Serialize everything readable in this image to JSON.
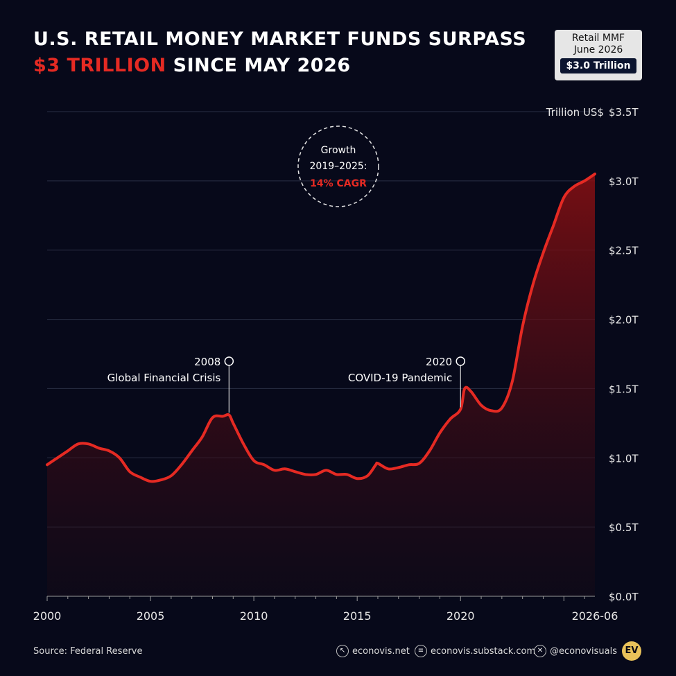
{
  "title": {
    "line1": "U.S. RETAIL MONEY MARKET FUNDS SURPASS",
    "highlight": "$3 TRILLION",
    "line2_rest": " SINCE MAY 2026"
  },
  "badge": {
    "line1": "Retail MMF",
    "line2": "June 2026",
    "value": "$3.0 Trillion"
  },
  "chart_data": {
    "type": "area",
    "unit_label": "Trillion US$",
    "x_ticks": [
      "2000",
      "2005",
      "2010",
      "2015",
      "2020",
      "2026-06"
    ],
    "x_tick_years": [
      2000,
      2005,
      2010,
      2015,
      2020,
      2026.5
    ],
    "y_ticks": [
      "$0.0T",
      "$0.5T",
      "$1.0T",
      "$1.5T",
      "$2.0T",
      "$2.5T",
      "$3.0T",
      "$3.5T"
    ],
    "xlim": [
      2000,
      2026.5
    ],
    "ylim": [
      0,
      3.5
    ],
    "grid": true,
    "series": [
      {
        "x": [
          2000,
          2000.5,
          2001,
          2001.5,
          2002,
          2002.5,
          2003,
          2003.5,
          2004,
          2004.5,
          2005,
          2005.5,
          2006,
          2006.5,
          2007,
          2007.5,
          2008,
          2008.5,
          2008.8,
          2009,
          2009.5,
          2010,
          2010.5,
          2011,
          2011.5,
          2012,
          2012.5,
          2013,
          2013.5,
          2014,
          2014.5,
          2015,
          2015.5,
          2015.9,
          2016,
          2016.5,
          2017,
          2017.5,
          2018,
          2018.5,
          2019,
          2019.5,
          2020,
          2020.2,
          2020.5,
          2021,
          2021.5,
          2022,
          2022.5,
          2023,
          2023.5,
          2024,
          2024.5,
          2025,
          2025.5,
          2026,
          2026.5
        ],
        "y": [
          0.95,
          1.0,
          1.05,
          1.1,
          1.1,
          1.07,
          1.05,
          1.0,
          0.9,
          0.86,
          0.83,
          0.84,
          0.87,
          0.95,
          1.05,
          1.15,
          1.29,
          1.3,
          1.31,
          1.25,
          1.1,
          0.98,
          0.95,
          0.91,
          0.92,
          0.9,
          0.88,
          0.88,
          0.91,
          0.88,
          0.88,
          0.85,
          0.87,
          0.95,
          0.96,
          0.92,
          0.93,
          0.95,
          0.96,
          1.05,
          1.18,
          1.28,
          1.35,
          1.5,
          1.48,
          1.38,
          1.34,
          1.36,
          1.55,
          1.95,
          2.25,
          2.48,
          2.68,
          2.88,
          2.96,
          3.0,
          3.05
        ]
      }
    ],
    "annotations": [
      {
        "x": 2008.8,
        "label_year": "2008",
        "label_text": "Global Financial Crisis"
      },
      {
        "x": 2020.0,
        "label_year": "2020",
        "label_text": "COVID-19 Pandemic"
      }
    ],
    "callout": {
      "line1": "Growth",
      "line2": "2019–2025:",
      "line3": "14% CAGR"
    }
  },
  "footer": {
    "source": "Source: Federal Reserve",
    "website": "econovis.net",
    "substack": "econovis.substack.com",
    "x_handle": "@econovisuals",
    "logo_text": "EV"
  },
  "colors": {
    "background": "#07091a",
    "line": "#e52a23",
    "accent": "#e52a23",
    "grid": "#2a2f45",
    "logo": "#e9c25a"
  }
}
